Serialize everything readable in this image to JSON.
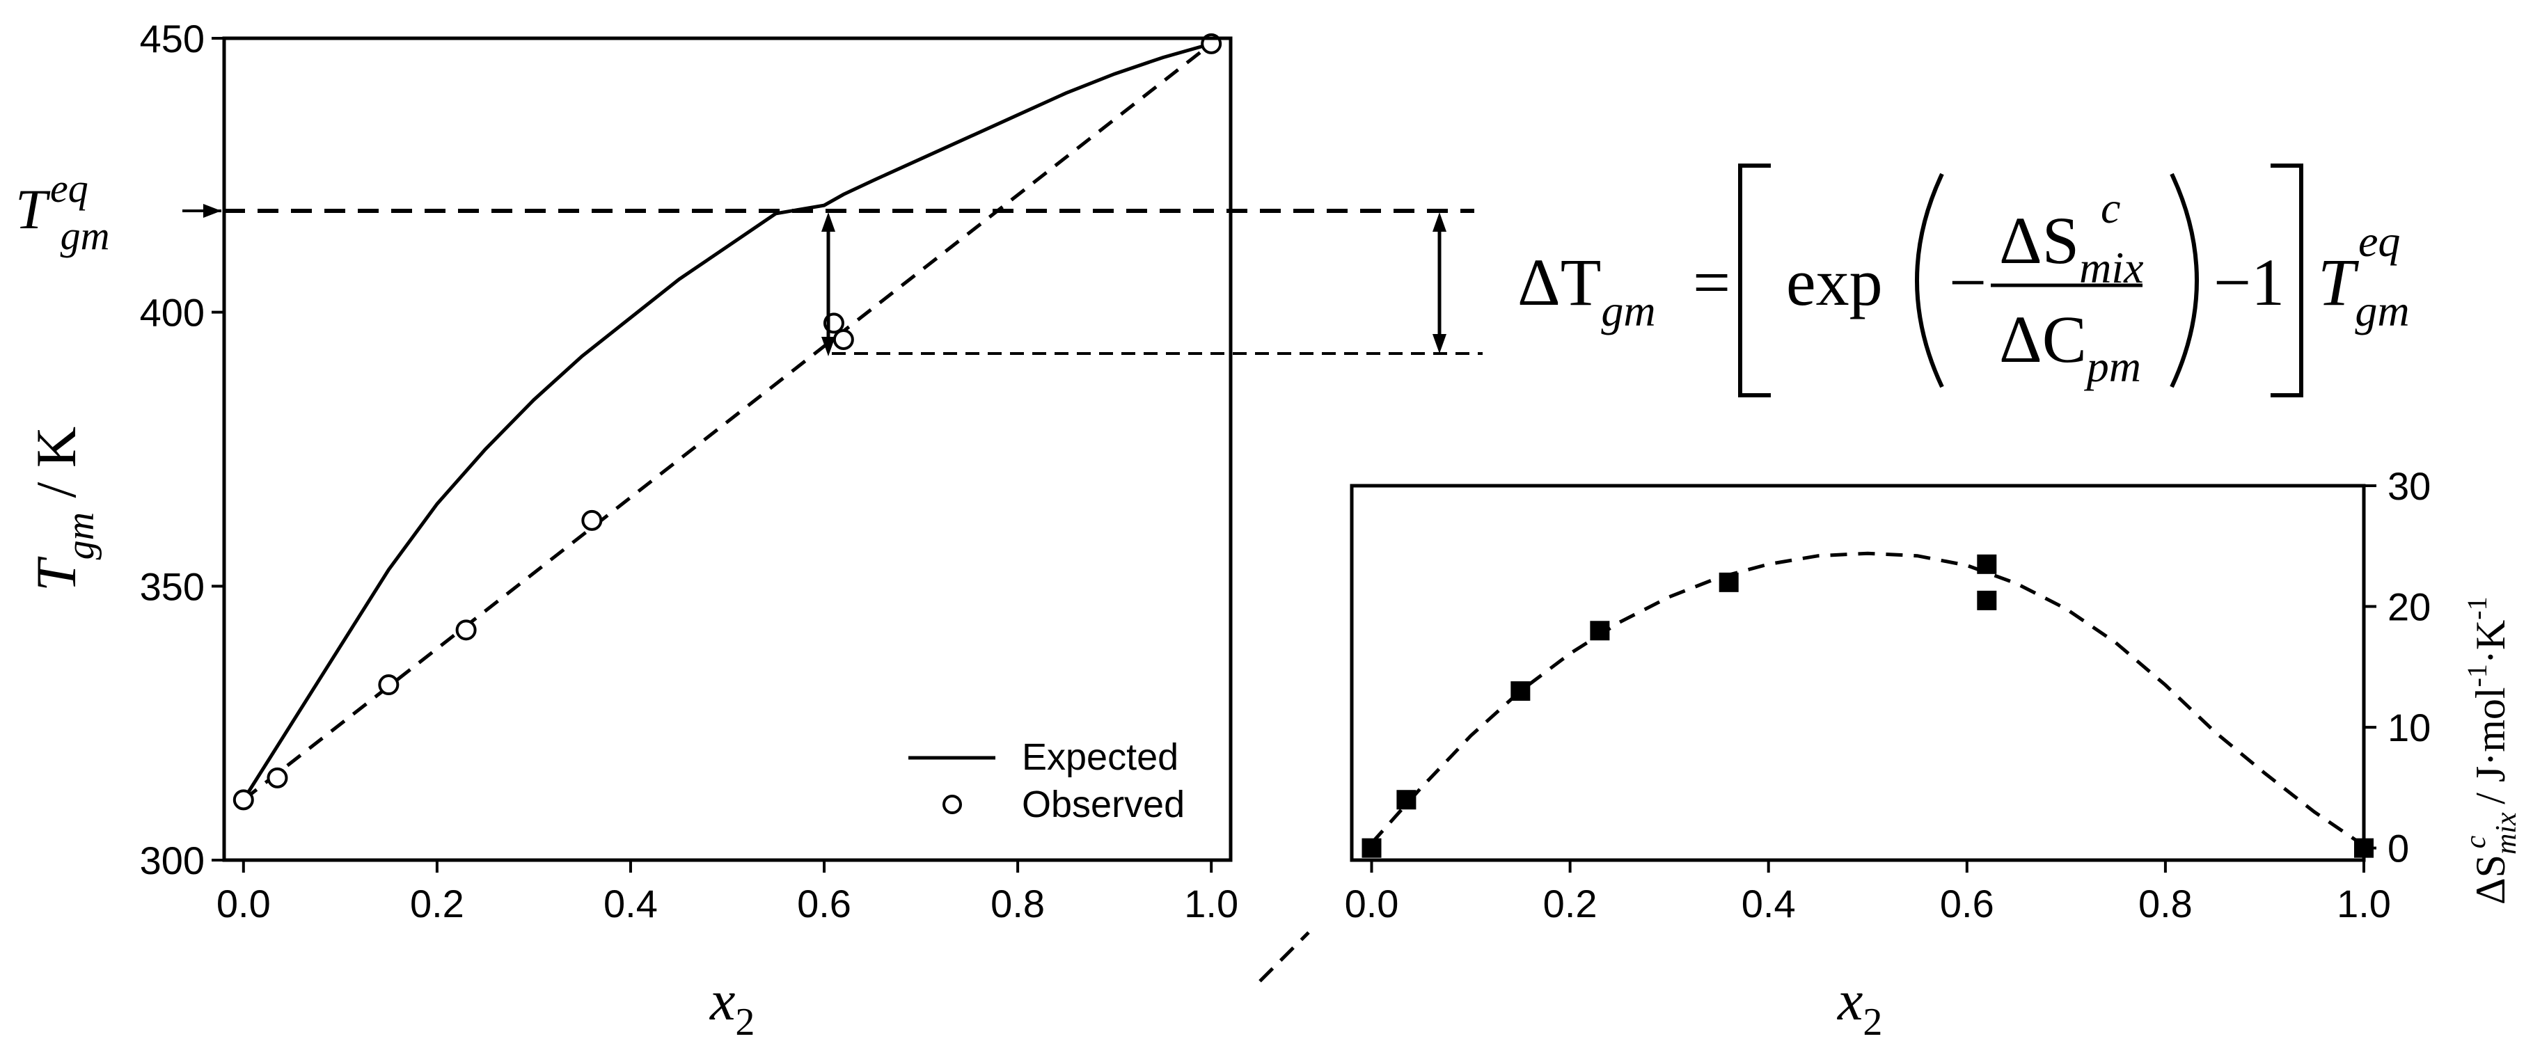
{
  "figure": {
    "left_chart": {
      "y_axis_label": {
        "symbol": "T",
        "subscript": "gm",
        "separator": " / ",
        "unit": "K"
      },
      "x_axis_label": {
        "symbol": "x",
        "subscript": "2"
      },
      "reference_label": {
        "symbol": "T",
        "subscript": "gm",
        "superscript": "eq"
      },
      "legend": {
        "expected": "Expected",
        "observed": "Observed"
      }
    },
    "equation": {
      "lhs": "ΔT",
      "lhs_sub": "gm",
      "equals": "=",
      "func": "exp",
      "minus": "−",
      "num": "ΔS",
      "num_sup": "c",
      "num_sub": "mix",
      "den": "ΔC",
      "den_sub": "pm",
      "minus_one": "−1",
      "rhs": "T",
      "rhs_sub": "gm",
      "rhs_sup": "eq"
    },
    "right_chart": {
      "x_axis_label": {
        "symbol": "x",
        "subscript": "2"
      },
      "y_axis_label": {
        "symbol": "ΔS",
        "sup": "c",
        "sub": "mix",
        "unit": " / J·mol",
        "exp1": "-1",
        "unit2": "·K",
        "exp2": "-1"
      }
    }
  },
  "chart_data": [
    {
      "type": "line",
      "xlim": [
        -0.02,
        1.02
      ],
      "ylim": [
        300,
        450
      ],
      "xticks": [
        "0.0",
        "0.2",
        "0.4",
        "0.6",
        "0.8",
        "1.0"
      ],
      "xtick_values": [
        0.0,
        0.2,
        0.4,
        0.6,
        0.8,
        1.0
      ],
      "yticks": [
        "300",
        "350",
        "400",
        "450"
      ],
      "ytick_values": [
        300,
        350,
        400,
        450
      ],
      "legend_position": "bottom-right",
      "reference_y": 419,
      "series": [
        {
          "name": "Expected",
          "style": "solid",
          "x": [
            0.0,
            0.05,
            0.1,
            0.15,
            0.2,
            0.25,
            0.3,
            0.35,
            0.4,
            0.45,
            0.5,
            0.55,
            0.6,
            0.62,
            0.65,
            0.7,
            0.75,
            0.8,
            0.85,
            0.9,
            0.95,
            1.0
          ],
          "y": [
            311,
            325,
            339,
            353,
            365,
            375,
            384,
            392,
            399,
            406,
            412,
            418,
            419.5,
            421.5,
            424,
            428,
            432,
            436,
            440,
            443.5,
            446.5,
            449
          ]
        },
        {
          "name": "",
          "style": "dashed",
          "x": [
            0.0,
            1.0
          ],
          "y": [
            311,
            449
          ]
        },
        {
          "name": "Observed",
          "style": "open-circle",
          "x": [
            0.0,
            0.035,
            0.15,
            0.23,
            0.36,
            0.61,
            0.62,
            1.0
          ],
          "y": [
            311,
            315,
            332,
            342,
            362,
            398,
            395,
            449
          ]
        }
      ]
    },
    {
      "type": "scatter",
      "xlim": [
        -0.02,
        1.0
      ],
      "ylim": [
        -1,
        30
      ],
      "xticks": [
        "0.0",
        "0.2",
        "0.4",
        "0.6",
        "0.8",
        "1.0"
      ],
      "xtick_values": [
        0.0,
        0.2,
        0.4,
        0.6,
        0.8,
        1.0
      ],
      "yticks": [
        "0",
        "10",
        "20",
        "30"
      ],
      "ytick_values": [
        0,
        10,
        20,
        30
      ],
      "series": [
        {
          "name": "",
          "style": "filled-square",
          "x": [
            0.0,
            0.035,
            0.15,
            0.23,
            0.36,
            0.62,
            0.62,
            1.0
          ],
          "y": [
            0,
            4,
            13,
            18,
            22,
            23.5,
            20.5,
            0
          ]
        },
        {
          "name": "",
          "style": "dashed-fit",
          "x": [
            0.0,
            0.05,
            0.1,
            0.15,
            0.2,
            0.25,
            0.3,
            0.35,
            0.4,
            0.45,
            0.5,
            0.55,
            0.6,
            0.65,
            0.7,
            0.75,
            0.8,
            0.85,
            0.9,
            0.95,
            1.0
          ],
          "y": [
            0.4,
            5.0,
            9.3,
            13.0,
            16.1,
            18.7,
            20.8,
            22.4,
            23.5,
            24.2,
            24.4,
            24.2,
            23.4,
            21.9,
            19.8,
            17.0,
            13.5,
            9.6,
            6.2,
            3.0,
            0.2
          ]
        }
      ]
    }
  ]
}
